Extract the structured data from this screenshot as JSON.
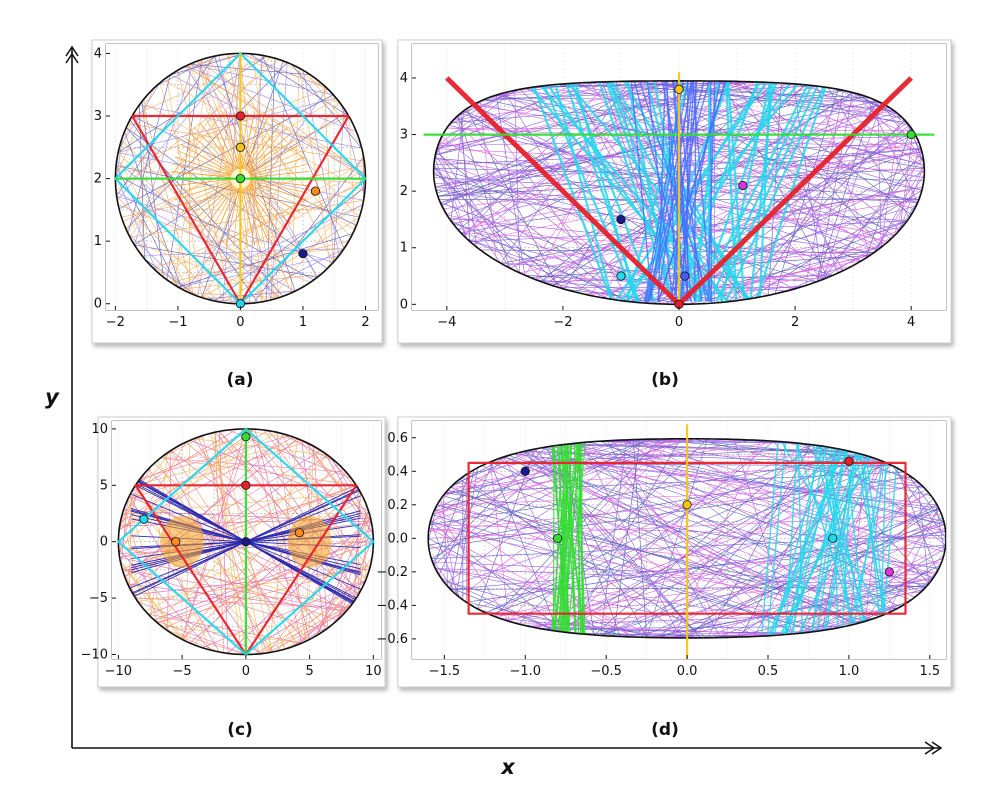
{
  "figure": {
    "xlabel": "x",
    "ylabel": "y",
    "colors": {
      "red": "#e8202a",
      "green": "#33dd33",
      "cyan": "#22d8ee",
      "yellow": "#f5c518",
      "navy": "#1a1a8c",
      "blue": "#4a5cf0",
      "purple": "#8a2be2",
      "magenta": "#dd33dd",
      "orange": "#ff8c1a",
      "boundary": "#111111"
    }
  },
  "chart_data": [
    {
      "type": "scatter",
      "caption": "(a)",
      "xlim": [
        -2.15,
        2.2
      ],
      "ylim": [
        -0.1,
        4.15
      ],
      "xticks": [
        -2,
        -1,
        0,
        1,
        2
      ],
      "yticks": [
        0,
        1,
        2,
        3,
        4
      ],
      "grid": true,
      "boundary": {
        "shape": "circle",
        "center": [
          0,
          2
        ],
        "radius": 2
      },
      "orbits": [
        {
          "name": "triangle",
          "color": "red",
          "points": [
            [
              -1.73,
              3
            ],
            [
              1.73,
              3
            ],
            [
              0,
              0
            ]
          ]
        },
        {
          "name": "diamond",
          "color": "cyan",
          "points": [
            [
              0,
              4
            ],
            [
              2,
              2
            ],
            [
              0,
              0
            ],
            [
              -2,
              2
            ]
          ]
        },
        {
          "name": "horizontal",
          "color": "green",
          "points": [
            [
              -2,
              2
            ],
            [
              2,
              2
            ]
          ]
        },
        {
          "name": "vertical",
          "color": "yellow",
          "points": [
            [
              0,
              0
            ],
            [
              0,
              4
            ]
          ]
        }
      ],
      "points": [
        {
          "x": 0,
          "y": 3,
          "color": "red"
        },
        {
          "x": 0,
          "y": 2.5,
          "color": "yellow"
        },
        {
          "x": 0,
          "y": 2,
          "color": "green"
        },
        {
          "x": 1.2,
          "y": 1.8,
          "color": "orange"
        },
        {
          "x": 1,
          "y": 0.8,
          "color": "navy"
        },
        {
          "x": 0,
          "y": 0,
          "color": "cyan"
        }
      ]
    },
    {
      "type": "scatter",
      "caption": "(b)",
      "xlim": [
        -4.6,
        4.6
      ],
      "ylim": [
        -0.1,
        4.6
      ],
      "xticks": [
        -4,
        -2,
        0,
        2,
        4
      ],
      "yticks": [
        0,
        1,
        2,
        3,
        4
      ],
      "grid": true,
      "boundary": {
        "shape": "bean"
      },
      "orbits": [
        {
          "name": "v-shape",
          "color": "red",
          "points": [
            [
              -4,
              4
            ],
            [
              0,
              0
            ],
            [
              4,
              4
            ]
          ]
        },
        {
          "name": "horizontal",
          "color": "green",
          "points": [
            [
              -4.4,
              3
            ],
            [
              4.4,
              3
            ]
          ]
        },
        {
          "name": "vertical",
          "color": "yellow",
          "points": [
            [
              0,
              0
            ],
            [
              0,
              4.1
            ]
          ]
        }
      ],
      "points": [
        {
          "x": 0,
          "y": 3.8,
          "color": "yellow"
        },
        {
          "x": 4,
          "y": 3,
          "color": "green"
        },
        {
          "x": 1.1,
          "y": 2.1,
          "color": "magenta"
        },
        {
          "x": -1,
          "y": 1.5,
          "color": "navy"
        },
        {
          "x": -1,
          "y": 0.5,
          "color": "cyan"
        },
        {
          "x": 0.1,
          "y": 0.5,
          "color": "blue"
        },
        {
          "x": 0,
          "y": 0,
          "color": "red"
        }
      ]
    },
    {
      "type": "scatter",
      "caption": "(c)",
      "xlim": [
        -10.5,
        10.6
      ],
      "ylim": [
        -10.4,
        10.7
      ],
      "xticks": [
        -10,
        -5,
        0,
        5,
        10
      ],
      "yticks": [
        -10,
        -5,
        0,
        5,
        10
      ],
      "grid": true,
      "boundary": {
        "shape": "circle",
        "center": [
          0,
          0
        ],
        "radius": 10
      },
      "orbits": [
        {
          "name": "triangle",
          "color": "red",
          "points": [
            [
              -8.66,
              5
            ],
            [
              8.66,
              5
            ],
            [
              0,
              -10
            ]
          ]
        },
        {
          "name": "diamond",
          "color": "cyan",
          "points": [
            [
              0,
              10
            ],
            [
              10,
              0
            ],
            [
              0,
              -10
            ],
            [
              -10,
              0
            ]
          ]
        },
        {
          "name": "vertical",
          "color": "green",
          "points": [
            [
              0,
              -10
            ],
            [
              0,
              10
            ]
          ]
        }
      ],
      "points": [
        {
          "x": 0,
          "y": 9.3,
          "color": "green"
        },
        {
          "x": 0,
          "y": 5,
          "color": "red"
        },
        {
          "x": -8,
          "y": 2,
          "color": "cyan"
        },
        {
          "x": -5.5,
          "y": 0,
          "color": "orange"
        },
        {
          "x": 0,
          "y": 0,
          "color": "navy"
        },
        {
          "x": 4.2,
          "y": 0.8,
          "color": "orange"
        }
      ]
    },
    {
      "type": "scatter",
      "caption": "(d)",
      "xlim": [
        -1.7,
        1.6
      ],
      "ylim": [
        -0.72,
        0.7
      ],
      "xticks": [
        -1.5,
        -1.0,
        -0.5,
        0.0,
        0.5,
        1.0,
        1.5
      ],
      "xtick_labels": [
        "−1.5",
        "−1.0",
        "−0.5",
        "0.0",
        "0.5",
        "1.0",
        "1.5"
      ],
      "yticks": [
        0.6,
        0.4,
        0.2,
        0.0,
        -0.2,
        -0.4,
        -0.6
      ],
      "ytick_labels": [
        "0.6",
        "0.4",
        "0.2",
        "0.0",
        "−0.2",
        "−0.4",
        "−0.6"
      ],
      "grid": true,
      "boundary": {
        "shape": "peanut"
      },
      "orbits": [
        {
          "name": "rectangle",
          "color": "red",
          "points": [
            [
              -1.35,
              0.45
            ],
            [
              1.35,
              0.45
            ],
            [
              1.35,
              -0.45
            ],
            [
              -1.35,
              -0.45
            ]
          ]
        },
        {
          "name": "vertical",
          "color": "yellow",
          "points": [
            [
              0,
              -0.72
            ],
            [
              0,
              0.68
            ]
          ]
        }
      ],
      "points": [
        {
          "x": -1,
          "y": 0.4,
          "color": "navy"
        },
        {
          "x": 0,
          "y": 0.2,
          "color": "yellow"
        },
        {
          "x": 1,
          "y": 0.46,
          "color": "red"
        },
        {
          "x": -0.8,
          "y": 0,
          "color": "green"
        },
        {
          "x": 0.9,
          "y": 0,
          "color": "cyan"
        },
        {
          "x": 1.25,
          "y": -0.2,
          "color": "magenta"
        }
      ]
    }
  ]
}
